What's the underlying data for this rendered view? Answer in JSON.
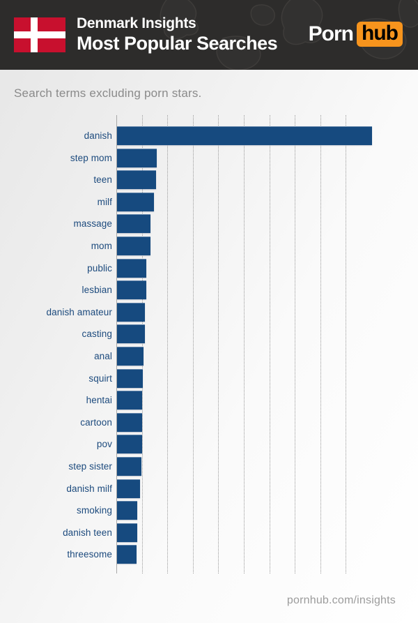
{
  "header": {
    "flag_country": "Denmark",
    "title_line1": "Denmark Insights",
    "title_line2": "Most Popular Searches",
    "logo_part1": "Porn",
    "logo_part2": "hub"
  },
  "subtitle": "Search terms excluding porn stars.",
  "footer": {
    "text": "pornhub.com/insights"
  },
  "colors": {
    "header_bg": "#2d2c2b",
    "map_outline": "#413f3d",
    "bar_blue": "#164a7f",
    "label_blue": "#1c4a7d",
    "flag_red": "#c8102e",
    "flag_cross_white": "#ffffff",
    "logo_orange": "#f7941d",
    "subtitle_gray": "#8a8a8a",
    "footer_gray": "#9b9b9b",
    "axis_gray": "#a8a8a8",
    "grid_gray": "#999999"
  },
  "chart_data": {
    "type": "bar",
    "orientation": "horizontal",
    "title": "Denmark Insights — Most Popular Searches",
    "subtitle": "Search terms excluding porn stars.",
    "categories": [
      "danish",
      "step mom",
      "teen",
      "milf",
      "massage",
      "mom",
      "public",
      "lesbian",
      "danish amateur",
      "casting",
      "anal",
      "squirt",
      "hentai",
      "cartoon",
      "pov",
      "step sister",
      "danish milf",
      "smoking",
      "danish teen",
      "threesome"
    ],
    "values": [
      10.0,
      1.55,
      1.52,
      1.46,
      1.32,
      1.3,
      1.16,
      1.16,
      1.09,
      1.08,
      1.03,
      1.0,
      0.98,
      0.98,
      0.98,
      0.96,
      0.89,
      0.8,
      0.78,
      0.77
    ],
    "value_unit": "relative search volume (1 unit = 1 gridline spacing)",
    "xlabel": "",
    "ylabel": "",
    "xlim": [
      0,
      11.8
    ],
    "grid": "vertical dotted gridlines, 9 lines at 1-unit intervals",
    "legend": null,
    "data_labels": false
  }
}
